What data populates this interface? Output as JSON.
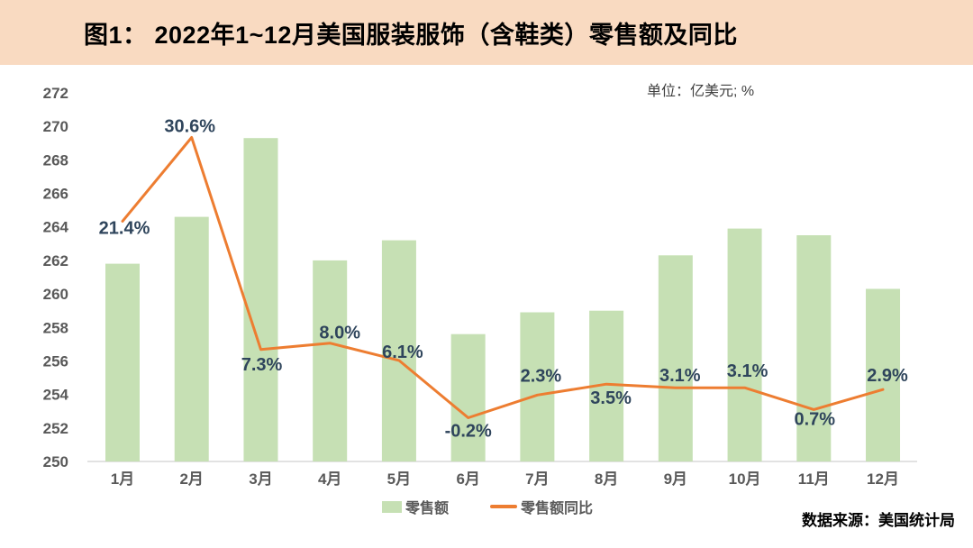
{
  "chart_data": {
    "type": "combo-bar-line",
    "title": "图1： 2022年1~12月美国服装服饰（含鞋类）零售额及同比",
    "unit_note": "单位：亿美元; %",
    "source_note": "数据来源：美国统计局",
    "categories": [
      "1月",
      "2月",
      "3月",
      "4月",
      "5月",
      "6月",
      "7月",
      "8月",
      "9月",
      "10月",
      "11月",
      "12月"
    ],
    "series": [
      {
        "name": "零售额",
        "type": "bar",
        "yaxis": "left",
        "values": [
          261.8,
          264.6,
          269.3,
          262.0,
          263.2,
          257.6,
          258.9,
          259.0,
          262.3,
          263.9,
          263.5,
          260.3
        ]
      },
      {
        "name": "零售额同比",
        "type": "line",
        "yaxis": "right",
        "values": [
          21.4,
          30.6,
          7.3,
          8.0,
          6.1,
          -0.2,
          2.3,
          3.5,
          3.1,
          3.1,
          0.7,
          2.9
        ],
        "point_labels": [
          "21.4%",
          "30.6%",
          "7.3%",
          "8.0%",
          "6.1%",
          "-0.2%",
          "2.3%",
          "3.5%",
          "3.1%",
          "3.1%",
          "0.7%",
          "2.9%"
        ],
        "label_side": [
          "below",
          "above",
          "below",
          "above",
          "above",
          "below",
          "above",
          "below",
          "above",
          "above",
          "below",
          "above"
        ]
      }
    ],
    "left_axis": {
      "min": 250,
      "max": 272,
      "step": 2,
      "ticks": [
        250,
        252,
        254,
        256,
        258,
        260,
        262,
        264,
        266,
        268,
        270,
        272
      ]
    },
    "right_axis": {
      "min": -5,
      "max": 35.5,
      "ticks_shown": false
    },
    "grid": false,
    "legend": {
      "position": "bottom-center"
    }
  },
  "colors": {
    "header_bg": "#F9DAC1",
    "title_text": "#000000",
    "unit_text": "#404040",
    "bar_fill": "#C6E0B4",
    "line_stroke": "#ED7D31",
    "point_label": "#2F455C",
    "axis_text": "#595959",
    "baseline": "#D9D9D9",
    "source_text": "#000000"
  }
}
